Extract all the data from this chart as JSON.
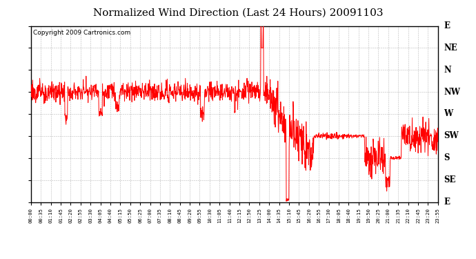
{
  "title": "Normalized Wind Direction (Last 24 Hours) 20091103",
  "copyright_text": "Copyright 2009 Cartronics.com",
  "y_labels": [
    "E",
    "NE",
    "N",
    "NW",
    "W",
    "SW",
    "S",
    "SE",
    "E"
  ],
  "y_values": [
    0,
    45,
    90,
    135,
    180,
    225,
    270,
    315,
    360
  ],
  "line_color": "#ff0000",
  "background_color": "#ffffff",
  "grid_color": "#888888",
  "title_fontsize": 11,
  "copyright_fontsize": 6.5,
  "x_tick_labels": [
    "00:00",
    "00:35",
    "01:10",
    "01:45",
    "02:20",
    "02:55",
    "03:30",
    "04:05",
    "04:40",
    "05:15",
    "05:50",
    "06:25",
    "07:00",
    "07:35",
    "08:10",
    "08:45",
    "09:20",
    "09:55",
    "10:30",
    "11:05",
    "11:40",
    "12:15",
    "12:50",
    "13:25",
    "14:00",
    "14:35",
    "15:10",
    "15:45",
    "16:20",
    "16:55",
    "17:30",
    "18:05",
    "18:40",
    "19:15",
    "19:50",
    "20:25",
    "21:00",
    "21:35",
    "22:10",
    "22:45",
    "23:20",
    "23:55"
  ]
}
